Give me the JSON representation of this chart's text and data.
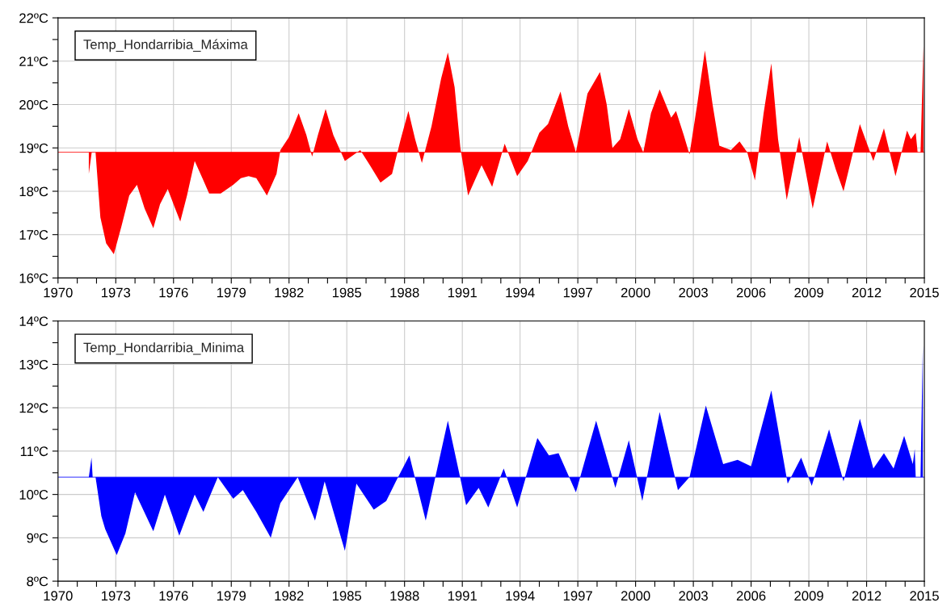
{
  "chart_data": [
    {
      "type": "area",
      "legend": "top left",
      "grid": true,
      "xlim": [
        1970,
        2015
      ],
      "xticks": [
        {
          "value": 1970,
          "label": "1970"
        },
        {
          "value": 1971,
          "label": null
        },
        {
          "value": 1972,
          "label": null
        },
        {
          "value": 1973,
          "label": "1973"
        },
        {
          "value": 1974,
          "label": null
        },
        {
          "value": 1975,
          "label": null
        },
        {
          "value": 1976,
          "label": "1976"
        },
        {
          "value": 1977,
          "label": null
        },
        {
          "value": 1978,
          "label": null
        },
        {
          "value": 1979,
          "label": "1979"
        },
        {
          "value": 1980,
          "label": null
        },
        {
          "value": 1981,
          "label": null
        },
        {
          "value": 1982,
          "label": "1982"
        },
        {
          "value": 1983,
          "label": null
        },
        {
          "value": 1984,
          "label": null
        },
        {
          "value": 1985,
          "label": "1985"
        },
        {
          "value": 1986,
          "label": null
        },
        {
          "value": 1987,
          "label": null
        },
        {
          "value": 1988,
          "label": "1988"
        },
        {
          "value": 1989,
          "label": null
        },
        {
          "value": 1990,
          "label": null
        },
        {
          "value": 1991,
          "label": "1991"
        },
        {
          "value": 1992,
          "label": null
        },
        {
          "value": 1993,
          "label": null
        },
        {
          "value": 1994,
          "label": "1994"
        },
        {
          "value": 1995,
          "label": null
        },
        {
          "value": 1996,
          "label": null
        },
        {
          "value": 1997,
          "label": "1997"
        },
        {
          "value": 1998,
          "label": null
        },
        {
          "value": 1999,
          "label": null
        },
        {
          "value": 2000,
          "label": "2000"
        },
        {
          "value": 2001,
          "label": null
        },
        {
          "value": 2002,
          "label": null
        },
        {
          "value": 2003,
          "label": "2003"
        },
        {
          "value": 2004,
          "label": null
        },
        {
          "value": 2005,
          "label": null
        },
        {
          "value": 2006,
          "label": "2006"
        },
        {
          "value": 2007,
          "label": null
        },
        {
          "value": 2008,
          "label": null
        },
        {
          "value": 2009,
          "label": "2009"
        },
        {
          "value": 2010,
          "label": null
        },
        {
          "value": 2011,
          "label": null
        },
        {
          "value": 2012,
          "label": "2012"
        },
        {
          "value": 2013,
          "label": null
        },
        {
          "value": 2014,
          "label": null
        },
        {
          "value": 2015,
          "label": "2015"
        }
      ],
      "ylim": [
        16,
        22
      ],
      "yticks": [
        {
          "value": 16,
          "label": "16ºC"
        },
        {
          "value": 16.5,
          "label": null
        },
        {
          "value": 17,
          "label": "17ºC"
        },
        {
          "value": 17.5,
          "label": null
        },
        {
          "value": 18,
          "label": "18ºC"
        },
        {
          "value": 18.5,
          "label": null
        },
        {
          "value": 19,
          "label": "19ºC"
        },
        {
          "value": 19.5,
          "label": null
        },
        {
          "value": 20,
          "label": "20ºC"
        },
        {
          "value": 20.5,
          "label": null
        },
        {
          "value": 21,
          "label": "21ºC"
        },
        {
          "value": 21.5,
          "label": null
        },
        {
          "value": 22,
          "label": "22ºC"
        }
      ],
      "ref_lines": [
        {
          "axis": "y",
          "value": 18.9,
          "color": "#ff0000"
        }
      ],
      "series": [
        {
          "name": "Temp_Hondarribia_Máxima",
          "color": "#ff0000",
          "x": [
            1971.6,
            1971.75,
            1971.95,
            1972.2,
            1972.5,
            1972.9,
            1973.3,
            1973.7,
            1974.1,
            1974.5,
            1974.95,
            1975.3,
            1975.7,
            1976.0,
            1976.35,
            1976.7,
            1977.1,
            1977.5,
            1977.85,
            1978.45,
            1979.1,
            1979.5,
            1979.9,
            1980.3,
            1980.85,
            1981.35,
            1981.55,
            1982.0,
            1982.5,
            1982.9,
            1983.2,
            1983.5,
            1983.9,
            1984.3,
            1984.9,
            1985.7,
            1986.2,
            1986.75,
            1987.35,
            1987.8,
            1988.2,
            1988.55,
            1988.9,
            1989.4,
            1989.9,
            1990.25,
            1990.6,
            1990.9,
            1991.3,
            1991.7,
            1992.0,
            1992.55,
            1993.2,
            1993.85,
            1994.4,
            1995.0,
            1995.45,
            1996.1,
            1996.5,
            1996.9,
            1997.5,
            1998.15,
            1998.5,
            1998.8,
            1999.2,
            1999.65,
            2000.1,
            2000.4,
            2000.8,
            2001.25,
            2001.85,
            2002.1,
            2002.5,
            2002.8,
            2003.2,
            2003.6,
            2004.0,
            2004.35,
            2004.95,
            2005.4,
            2005.8,
            2006.2,
            2006.65,
            2007.05,
            2007.4,
            2007.85,
            2008.5,
            2008.9,
            2009.2,
            2009.95,
            2010.4,
            2010.8,
            2011.65,
            2012.35,
            2012.9,
            2013.5,
            2014.1,
            2014.3,
            2014.55,
            2014.65,
            2014.8,
            2014.95
          ],
          "values": [
            18.4,
            18.9,
            18.9,
            17.4,
            16.8,
            16.55,
            17.2,
            17.9,
            18.15,
            17.6,
            17.15,
            17.7,
            18.05,
            17.7,
            17.3,
            17.9,
            18.7,
            18.3,
            17.95,
            17.95,
            18.15,
            18.3,
            18.35,
            18.3,
            17.9,
            18.4,
            18.95,
            19.25,
            19.8,
            19.3,
            18.8,
            19.3,
            19.9,
            19.3,
            18.7,
            18.95,
            18.6,
            18.2,
            18.4,
            19.2,
            19.85,
            19.2,
            18.65,
            19.5,
            20.6,
            21.2,
            20.4,
            19.0,
            17.9,
            18.3,
            18.6,
            18.1,
            19.1,
            18.35,
            18.7,
            19.35,
            19.55,
            20.3,
            19.5,
            18.9,
            20.25,
            20.75,
            20.0,
            19.0,
            19.2,
            19.9,
            19.2,
            18.9,
            19.8,
            20.35,
            19.7,
            19.85,
            19.3,
            18.85,
            20.0,
            21.25,
            20.0,
            19.05,
            18.95,
            19.15,
            18.9,
            18.25,
            19.8,
            20.95,
            19.2,
            17.8,
            19.25,
            18.3,
            17.6,
            19.15,
            18.5,
            18.0,
            19.55,
            18.7,
            19.45,
            18.35,
            19.4,
            19.2,
            19.35,
            18.9,
            18.9,
            21.35
          ]
        }
      ]
    },
    {
      "type": "area",
      "legend": "top left",
      "grid": true,
      "xlim": [
        1970,
        2015
      ],
      "xticks": [
        {
          "value": 1970,
          "label": "1970"
        },
        {
          "value": 1971,
          "label": null
        },
        {
          "value": 1972,
          "label": null
        },
        {
          "value": 1973,
          "label": "1973"
        },
        {
          "value": 1974,
          "label": null
        },
        {
          "value": 1975,
          "label": null
        },
        {
          "value": 1976,
          "label": "1976"
        },
        {
          "value": 1977,
          "label": null
        },
        {
          "value": 1978,
          "label": null
        },
        {
          "value": 1979,
          "label": "1979"
        },
        {
          "value": 1980,
          "label": null
        },
        {
          "value": 1981,
          "label": null
        },
        {
          "value": 1982,
          "label": "1982"
        },
        {
          "value": 1983,
          "label": null
        },
        {
          "value": 1984,
          "label": null
        },
        {
          "value": 1985,
          "label": "1985"
        },
        {
          "value": 1986,
          "label": null
        },
        {
          "value": 1987,
          "label": null
        },
        {
          "value": 1988,
          "label": "1988"
        },
        {
          "value": 1989,
          "label": null
        },
        {
          "value": 1990,
          "label": null
        },
        {
          "value": 1991,
          "label": "1991"
        },
        {
          "value": 1992,
          "label": null
        },
        {
          "value": 1993,
          "label": null
        },
        {
          "value": 1994,
          "label": "1994"
        },
        {
          "value": 1995,
          "label": null
        },
        {
          "value": 1996,
          "label": null
        },
        {
          "value": 1997,
          "label": "1997"
        },
        {
          "value": 1998,
          "label": null
        },
        {
          "value": 1999,
          "label": null
        },
        {
          "value": 2000,
          "label": "2000"
        },
        {
          "value": 2001,
          "label": null
        },
        {
          "value": 2002,
          "label": null
        },
        {
          "value": 2003,
          "label": "2003"
        },
        {
          "value": 2004,
          "label": null
        },
        {
          "value": 2005,
          "label": null
        },
        {
          "value": 2006,
          "label": "2006"
        },
        {
          "value": 2007,
          "label": null
        },
        {
          "value": 2008,
          "label": null
        },
        {
          "value": 2009,
          "label": "2009"
        },
        {
          "value": 2010,
          "label": null
        },
        {
          "value": 2011,
          "label": null
        },
        {
          "value": 2012,
          "label": "2012"
        },
        {
          "value": 2013,
          "label": null
        },
        {
          "value": 2014,
          "label": null
        },
        {
          "value": 2015,
          "label": "2015"
        }
      ],
      "ylim": [
        8,
        14
      ],
      "yticks": [
        {
          "value": 8,
          "label": "8ºC"
        },
        {
          "value": 8.5,
          "label": null
        },
        {
          "value": 9,
          "label": "9ºC"
        },
        {
          "value": 9.5,
          "label": null
        },
        {
          "value": 10,
          "label": "10ºC"
        },
        {
          "value": 10.5,
          "label": null
        },
        {
          "value": 11,
          "label": "11ºC"
        },
        {
          "value": 11.5,
          "label": null
        },
        {
          "value": 12,
          "label": "12ºC"
        },
        {
          "value": 12.5,
          "label": null
        },
        {
          "value": 13,
          "label": "13ºC"
        },
        {
          "value": 13.5,
          "label": null
        },
        {
          "value": 14,
          "label": "14ºC"
        }
      ],
      "ref_lines": [
        {
          "axis": "y",
          "value": 10.4,
          "color": "#0000ff"
        }
      ],
      "series": [
        {
          "name": "Temp_Hondarribia_Minima",
          "color": "#0000ff",
          "x": [
            1971.6,
            1971.74,
            1971.8,
            1971.95,
            1972.25,
            1972.45,
            1973.05,
            1973.5,
            1974.0,
            1974.95,
            1975.55,
            1976.3,
            1977.1,
            1977.55,
            1978.3,
            1979.1,
            1979.6,
            1980.3,
            1981.05,
            1981.55,
            1982.45,
            1983.35,
            1983.85,
            1984.9,
            1985.5,
            1986.4,
            1987.05,
            1987.55,
            1988.25,
            1989.1,
            1990.25,
            1991.2,
            1991.85,
            1992.35,
            1993.15,
            1993.85,
            1994.3,
            1994.9,
            1995.5,
            1996.0,
            1996.9,
            1997.95,
            1998.95,
            1999.65,
            2000.35,
            2001.25,
            2002.2,
            2002.8,
            2003.65,
            2004.55,
            2005.3,
            2006.0,
            2007.05,
            2007.9,
            2008.6,
            2009.15,
            2010.05,
            2010.8,
            2011.65,
            2012.35,
            2012.9,
            2013.4,
            2013.95,
            2014.4,
            2014.5,
            2014.55,
            2014.8,
            2014.92
          ],
          "values": [
            10.4,
            10.85,
            10.4,
            10.4,
            9.5,
            9.2,
            8.6,
            9.1,
            10.05,
            9.15,
            10.0,
            9.05,
            10.0,
            9.6,
            10.4,
            9.9,
            10.1,
            9.6,
            9.0,
            9.8,
            10.4,
            9.4,
            10.3,
            8.7,
            10.25,
            9.65,
            9.85,
            10.3,
            10.9,
            9.4,
            11.7,
            9.75,
            10.15,
            9.7,
            10.6,
            9.7,
            10.4,
            11.3,
            10.9,
            10.95,
            10.05,
            11.7,
            10.15,
            11.25,
            9.85,
            11.9,
            10.1,
            10.4,
            12.05,
            10.7,
            10.8,
            10.65,
            12.4,
            10.25,
            10.85,
            10.2,
            11.5,
            10.3,
            11.75,
            10.6,
            10.95,
            10.6,
            11.35,
            10.7,
            11.05,
            10.4,
            10.4,
            13.45
          ]
        }
      ]
    }
  ]
}
